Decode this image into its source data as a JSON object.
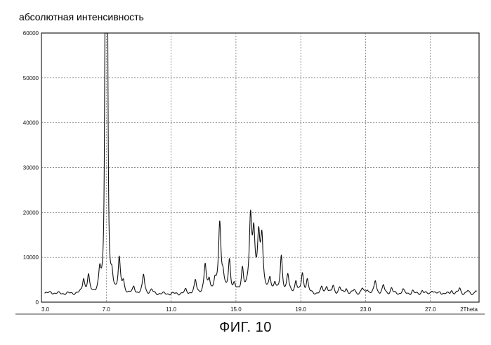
{
  "caption": "ФИГ. 10",
  "chart_data": {
    "type": "line",
    "title": "",
    "ylabel": "абсолютная интенсивность",
    "xlabel": "2Theta",
    "xlim": [
      3.0,
      30.0
    ],
    "ylim": [
      0,
      60000
    ],
    "x_ticks": [
      "3.0",
      "7.0",
      "11.0",
      "15.0",
      "19.0",
      "23.0",
      "27.0"
    ],
    "x_tick_values": [
      3,
      7,
      11,
      15,
      19,
      23,
      27
    ],
    "x_end_label": "2Theta",
    "y_ticks": [
      "0",
      "10000",
      "20000",
      "30000",
      "40000",
      "50000",
      "60000"
    ],
    "y_tick_values": [
      0,
      10000,
      20000,
      30000,
      40000,
      50000,
      60000
    ],
    "grid": true,
    "baseline": 1800,
    "peaks": [
      {
        "x": 3.6,
        "y": 300
      },
      {
        "x": 5.6,
        "y": 3200
      },
      {
        "x": 5.9,
        "y": 3800
      },
      {
        "x": 6.6,
        "y": 4500
      },
      {
        "x": 6.93,
        "y": 50000
      },
      {
        "x": 7.0,
        "y": 54000
      },
      {
        "x": 7.08,
        "y": 48000
      },
      {
        "x": 7.35,
        "y": 3000
      },
      {
        "x": 7.8,
        "y": 7500
      },
      {
        "x": 8.05,
        "y": 2200
      },
      {
        "x": 8.7,
        "y": 1300
      },
      {
        "x": 9.3,
        "y": 4200
      },
      {
        "x": 9.8,
        "y": 800
      },
      {
        "x": 11.9,
        "y": 800
      },
      {
        "x": 12.5,
        "y": 2800
      },
      {
        "x": 13.1,
        "y": 6200
      },
      {
        "x": 13.35,
        "y": 2900
      },
      {
        "x": 13.7,
        "y": 2200
      },
      {
        "x": 14.0,
        "y": 15500
      },
      {
        "x": 14.2,
        "y": 3200
      },
      {
        "x": 14.6,
        "y": 7000
      },
      {
        "x": 14.9,
        "y": 1600
      },
      {
        "x": 15.4,
        "y": 5200
      },
      {
        "x": 15.9,
        "y": 15800
      },
      {
        "x": 16.1,
        "y": 12000
      },
      {
        "x": 16.4,
        "y": 11200
      },
      {
        "x": 16.6,
        "y": 11800
      },
      {
        "x": 17.1,
        "y": 2800
      },
      {
        "x": 17.4,
        "y": 2200
      },
      {
        "x": 17.8,
        "y": 8000
      },
      {
        "x": 18.2,
        "y": 4000
      },
      {
        "x": 18.7,
        "y": 2700
      },
      {
        "x": 19.1,
        "y": 4300
      },
      {
        "x": 19.4,
        "y": 3000
      },
      {
        "x": 20.3,
        "y": 1300
      },
      {
        "x": 20.6,
        "y": 1700
      },
      {
        "x": 21.0,
        "y": 1600
      },
      {
        "x": 21.4,
        "y": 1400
      },
      {
        "x": 21.8,
        "y": 1200
      },
      {
        "x": 22.3,
        "y": 900
      },
      {
        "x": 22.8,
        "y": 1100
      },
      {
        "x": 23.1,
        "y": 1000
      },
      {
        "x": 23.6,
        "y": 2900
      },
      {
        "x": 24.1,
        "y": 1800
      },
      {
        "x": 24.6,
        "y": 1300
      },
      {
        "x": 25.3,
        "y": 1000
      },
      {
        "x": 25.9,
        "y": 700
      },
      {
        "x": 26.5,
        "y": 800
      },
      {
        "x": 27.1,
        "y": 900
      },
      {
        "x": 27.6,
        "y": 500
      },
      {
        "x": 28.3,
        "y": 800
      },
      {
        "x": 28.8,
        "y": 1300
      },
      {
        "x": 29.3,
        "y": 600
      },
      {
        "x": 29.8,
        "y": 800
      }
    ]
  }
}
